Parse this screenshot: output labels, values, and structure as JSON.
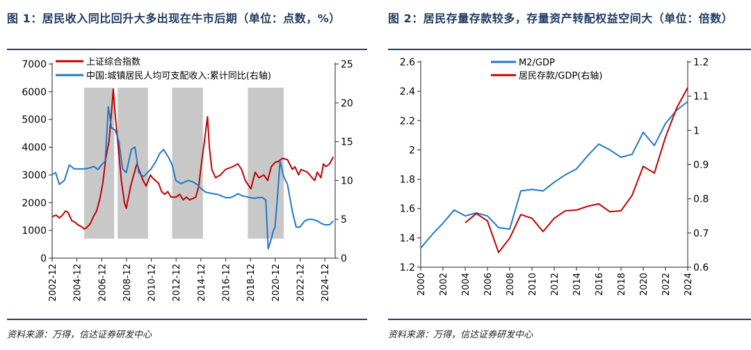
{
  "colors": {
    "red": "#c00000",
    "blue": "#1f77c8",
    "band": "#c8c8c8",
    "navy": "#1f3b63"
  },
  "chart_data": [
    {
      "id": "chart1",
      "type": "line",
      "title": "图 1：居民收入同比回升大多出现在牛市后期（单位：点数，%）",
      "source": "资料来源：万得，信达证券研发中心",
      "ylim": [
        0,
        7000
      ],
      "y_ticks": [
        0,
        1000,
        2000,
        3000,
        4000,
        5000,
        6000,
        7000
      ],
      "y2lim": [
        0,
        25
      ],
      "y2_ticks": [
        0,
        5,
        10,
        15,
        20,
        25
      ],
      "xlim": [
        2002.917,
        2025.75
      ],
      "x_ticks": [
        "2002-12",
        "2004-12",
        "2006-12",
        "2008-12",
        "2010-12",
        "2012-12",
        "2014-12",
        "2016-12",
        "2018-12",
        "2020-12",
        "2022-12",
        "2024-12"
      ],
      "shaded_periods": [
        [
          2005.5,
          2007.92
        ],
        [
          2008.2,
          2010.65
        ],
        [
          2012.6,
          2015.08
        ],
        [
          2018.7,
          2021.6
        ]
      ],
      "series": [
        {
          "name": "上证综合指数",
          "axis": "left",
          "color": "#c00000",
          "x": [
            2002.92,
            2003.25,
            2003.5,
            2003.75,
            2004.0,
            2004.2,
            2004.5,
            2004.75,
            2005.0,
            2005.25,
            2005.5,
            2005.7,
            2006.0,
            2006.25,
            2006.5,
            2006.75,
            2007.0,
            2007.25,
            2007.5,
            2007.75,
            2007.85,
            2008.0,
            2008.25,
            2008.5,
            2008.75,
            2008.9,
            2009.25,
            2009.5,
            2009.75,
            2010.0,
            2010.25,
            2010.5,
            2010.85,
            2011.0,
            2011.25,
            2011.5,
            2011.75,
            2012.0,
            2012.25,
            2012.5,
            2012.92,
            2013.2,
            2013.5,
            2013.75,
            2014.0,
            2014.5,
            2014.75,
            2014.9,
            2015.2,
            2015.45,
            2015.6,
            2015.8,
            2016.1,
            2016.5,
            2016.9,
            2017.5,
            2017.9,
            2018.2,
            2018.5,
            2018.8,
            2018.95,
            2019.3,
            2019.6,
            2020.0,
            2020.3,
            2020.6,
            2020.9,
            2021.2,
            2021.5,
            2021.9,
            2022.3,
            2022.5,
            2022.8,
            2023.0,
            2023.5,
            2023.9,
            2024.1,
            2024.3,
            2024.6,
            2024.8,
            2025.0,
            2025.3,
            2025.6
          ],
          "values": [
            1500,
            1550,
            1450,
            1550,
            1700,
            1650,
            1350,
            1300,
            1200,
            1150,
            1050,
            1100,
            1250,
            1500,
            1700,
            2100,
            2700,
            3600,
            4200,
            5500,
            6100,
            5200,
            4000,
            2800,
            2000,
            1800,
            2600,
            3000,
            3400,
            3100,
            2800,
            2600,
            3000,
            2900,
            2800,
            2700,
            2400,
            2300,
            2400,
            2200,
            2200,
            2300,
            2100,
            2200,
            2100,
            2200,
            2600,
            3200,
            4200,
            5100,
            4000,
            3200,
            2900,
            3000,
            3200,
            3300,
            3400,
            3200,
            2800,
            2600,
            2500,
            3100,
            2900,
            3000,
            2800,
            3300,
            3450,
            3500,
            3600,
            3550,
            3200,
            3300,
            3000,
            3200,
            3100,
            2900,
            2800,
            3100,
            2900,
            3400,
            3300,
            3400,
            3650
          ]
        },
        {
          "name": "中国:城镇居民人均可支配收入:累计同比(右轴)",
          "axis": "right",
          "color": "#1f77c8",
          "x": [
            2002.92,
            2003.2,
            2003.5,
            2003.9,
            2004.3,
            2004.7,
            2005.2,
            2005.5,
            2005.9,
            2006.3,
            2006.6,
            2006.9,
            2007.2,
            2007.45,
            2007.7,
            2008.0,
            2008.3,
            2008.6,
            2008.9,
            2009.3,
            2009.6,
            2009.9,
            2010.3,
            2010.6,
            2010.9,
            2011.3,
            2011.6,
            2011.9,
            2012.3,
            2012.6,
            2012.9,
            2013.3,
            2013.6,
            2013.9,
            2014.3,
            2014.6,
            2014.9,
            2015.3,
            2015.6,
            2015.9,
            2016.3,
            2016.6,
            2016.9,
            2017.3,
            2017.6,
            2017.9,
            2018.3,
            2018.6,
            2018.9,
            2019.3,
            2019.5,
            2019.9,
            2020.15,
            2020.35,
            2020.6,
            2020.75,
            2020.9,
            2021.1,
            2021.3,
            2021.6,
            2021.9,
            2022.3,
            2022.6,
            2022.9,
            2023.3,
            2023.6,
            2023.9,
            2024.3,
            2024.6,
            2024.9,
            2025.3,
            2025.6
          ],
          "values": [
            10.8,
            11.0,
            9.5,
            10.0,
            12.0,
            11.5,
            11.5,
            11.5,
            11.6,
            11.8,
            11.4,
            12.0,
            12.5,
            19.5,
            16.8,
            16.5,
            15.0,
            11.5,
            11.0,
            14.0,
            14.3,
            11.0,
            10.5,
            11.0,
            11.5,
            12.5,
            13.5,
            14.0,
            13.0,
            12.0,
            10.0,
            9.6,
            9.8,
            10.0,
            9.8,
            9.5,
            9.0,
            8.5,
            8.4,
            8.3,
            8.2,
            8.0,
            7.8,
            7.8,
            8.0,
            8.3,
            8.0,
            7.9,
            7.8,
            7.7,
            7.8,
            7.8,
            7.5,
            1.2,
            2.5,
            3.5,
            4.0,
            8.0,
            12.5,
            10.5,
            9.5,
            6.0,
            4.0,
            4.0,
            4.8,
            5.0,
            5.0,
            4.8,
            4.5,
            4.3,
            4.3,
            4.8
          ]
        }
      ]
    },
    {
      "id": "chart2",
      "type": "line",
      "title": "图 2：居民存量存款较多，存量资产转配权益空间大（单位：倍数）",
      "source": "资料来源：万得，信达证券研发中心",
      "ylim": [
        1.2,
        2.6
      ],
      "y_ticks": [
        "1.2",
        "1.4",
        "1.6",
        "1.8",
        "2",
        "2.2",
        "2.4",
        "2.6"
      ],
      "y2lim": [
        0.6,
        1.2
      ],
      "y2_ticks": [
        "0.6",
        "0.7",
        "0.8",
        "0.9",
        "1",
        "1.1",
        "1.2"
      ],
      "xlim": [
        2000,
        2024
      ],
      "x_ticks": [
        "2000",
        "2002",
        "2004",
        "2006",
        "2008",
        "2010",
        "2012",
        "2014",
        "2016",
        "2018",
        "2020",
        "2022",
        "2024"
      ],
      "series": [
        {
          "name": "M2/GDP",
          "axis": "left",
          "color": "#1f77c8",
          "x": [
            2000,
            2001,
            2002,
            2003,
            2004,
            2005,
            2006,
            2007,
            2008,
            2009,
            2010,
            2011,
            2012,
            2013,
            2014,
            2015,
            2016,
            2017,
            2018,
            2019,
            2020,
            2021,
            2022,
            2023,
            2024
          ],
          "values": [
            1.33,
            1.42,
            1.5,
            1.59,
            1.55,
            1.57,
            1.55,
            1.47,
            1.46,
            1.72,
            1.73,
            1.72,
            1.78,
            1.83,
            1.87,
            1.96,
            2.04,
            2.0,
            1.95,
            1.97,
            2.12,
            2.03,
            2.18,
            2.27,
            2.33
          ]
        },
        {
          "name": "居民存款/GDP(右轴)",
          "axis": "right",
          "color": "#c00000",
          "x": [
            2004,
            2005,
            2006,
            2007,
            2008,
            2009,
            2010,
            2011,
            2012,
            2013,
            2014,
            2015,
            2016,
            2017,
            2018,
            2019,
            2020,
            2021,
            2022,
            2023,
            2024
          ],
          "values": [
            0.73,
            0.757,
            0.735,
            0.643,
            0.685,
            0.754,
            0.743,
            0.704,
            0.743,
            0.765,
            0.767,
            0.778,
            0.785,
            0.762,
            0.765,
            0.81,
            0.895,
            0.875,
            0.98,
            1.065,
            1.125
          ]
        }
      ]
    }
  ]
}
